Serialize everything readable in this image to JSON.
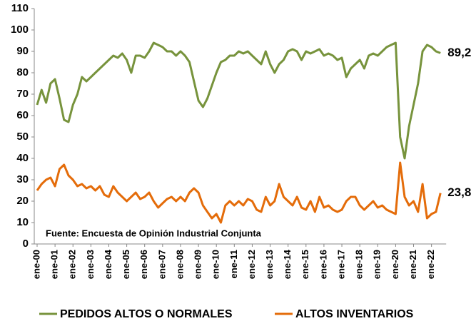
{
  "chart_data": {
    "type": "line",
    "annotation": "Fuente: Encuesta de Opinión Industrial Conjunta",
    "categories": [
      "ene-00",
      null,
      null,
      null,
      "ene-01",
      null,
      null,
      null,
      "ene-02",
      null,
      null,
      null,
      "ene-03",
      null,
      null,
      null,
      "ene-04",
      null,
      null,
      null,
      "ene-05",
      null,
      null,
      null,
      "ene-06",
      null,
      null,
      null,
      "ene-07",
      null,
      null,
      null,
      "ene-08",
      null,
      null,
      null,
      "ene-09",
      null,
      null,
      null,
      "ene-10",
      null,
      null,
      null,
      "ene-11",
      null,
      null,
      null,
      "ene-12",
      null,
      null,
      null,
      "ene-13",
      null,
      null,
      null,
      "ene-14",
      null,
      null,
      null,
      "ene-15",
      null,
      null,
      null,
      "ene-16",
      null,
      null,
      null,
      "ene-17",
      null,
      null,
      null,
      "ene-18",
      null,
      null,
      null,
      "ene-19",
      null,
      null,
      null,
      "ene-20",
      null,
      null,
      null,
      "ene-21",
      null,
      null,
      null,
      "ene-22",
      null,
      null
    ],
    "series": [
      {
        "name": "PEDIDOS ALTOS O NORMALES",
        "color": "#77933c",
        "values": [
          65,
          72,
          66,
          75,
          77,
          68,
          58,
          57,
          65,
          70,
          78,
          76,
          78,
          80,
          82,
          84,
          86,
          88,
          87,
          89,
          86,
          80,
          88,
          88,
          87,
          90,
          94,
          93,
          92,
          90,
          90,
          88,
          90,
          88,
          85,
          76,
          67,
          64,
          68,
          74,
          80,
          85,
          86,
          88,
          88,
          90,
          89,
          90,
          88,
          86,
          84,
          90,
          84,
          80,
          84,
          86,
          90,
          91,
          90,
          86,
          90,
          89,
          90,
          91,
          88,
          89,
          88,
          86,
          87,
          78,
          82,
          84,
          86,
          82,
          88,
          89,
          88,
          90,
          92,
          93,
          94,
          50,
          40,
          55,
          65,
          75,
          90,
          93,
          92,
          90,
          89.2
        ],
        "value_labels": [
          null,
          null,
          null,
          null,
          null,
          null,
          null,
          null,
          null,
          null,
          null,
          null,
          null,
          null,
          null,
          null,
          null,
          null,
          null,
          null,
          null,
          null,
          null,
          null,
          null,
          null,
          null,
          null,
          null,
          null,
          null,
          null,
          null,
          null,
          null,
          null,
          null,
          null,
          null,
          null,
          null,
          null,
          null,
          null,
          null,
          null,
          null,
          null,
          null,
          null,
          null,
          null,
          null,
          null,
          null,
          null,
          null,
          null,
          null,
          null,
          null,
          null,
          null,
          null,
          null,
          null,
          null,
          null,
          null,
          null,
          null,
          null,
          null,
          null,
          null,
          null,
          null,
          null,
          null,
          null,
          null,
          null,
          null,
          null,
          null,
          null,
          null,
          null,
          null,
          null,
          "89,2"
        ]
      },
      {
        "name": "ALTOS INVENTARIOS",
        "color": "#e46c0a",
        "values": [
          25,
          28,
          30,
          31,
          27,
          35,
          37,
          32,
          30,
          27,
          28,
          26,
          27,
          25,
          27,
          23,
          22,
          27,
          24,
          22,
          20,
          22,
          24,
          21,
          22,
          24,
          20,
          17,
          19,
          21,
          22,
          20,
          22,
          20,
          24,
          26,
          24,
          18,
          15,
          12,
          14,
          10,
          18,
          20,
          18,
          20,
          18,
          21,
          20,
          16,
          15,
          22,
          18,
          20,
          28,
          22,
          20,
          18,
          22,
          17,
          16,
          20,
          15,
          22,
          17,
          18,
          16,
          15,
          16,
          20,
          22,
          22,
          18,
          16,
          18,
          20,
          17,
          18,
          16,
          15,
          14,
          38,
          22,
          18,
          20,
          15,
          28,
          12,
          14,
          15,
          23.8
        ],
        "value_labels": [
          null,
          null,
          null,
          null,
          null,
          null,
          null,
          null,
          null,
          null,
          null,
          null,
          null,
          null,
          null,
          null,
          null,
          null,
          null,
          null,
          null,
          null,
          null,
          null,
          null,
          null,
          null,
          null,
          null,
          null,
          null,
          null,
          null,
          null,
          null,
          null,
          null,
          null,
          null,
          null,
          null,
          null,
          null,
          null,
          null,
          null,
          null,
          null,
          null,
          null,
          null,
          null,
          null,
          null,
          null,
          null,
          null,
          null,
          null,
          null,
          null,
          null,
          null,
          null,
          null,
          null,
          null,
          null,
          null,
          null,
          null,
          null,
          null,
          null,
          null,
          null,
          null,
          null,
          null,
          null,
          null,
          null,
          null,
          null,
          null,
          null,
          null,
          null,
          null,
          null,
          "23,8"
        ]
      }
    ],
    "ylim": [
      0,
      110
    ],
    "yticks": [
      0,
      10,
      20,
      30,
      40,
      50,
      60,
      70,
      80,
      90,
      100,
      110
    ],
    "grid": false
  }
}
